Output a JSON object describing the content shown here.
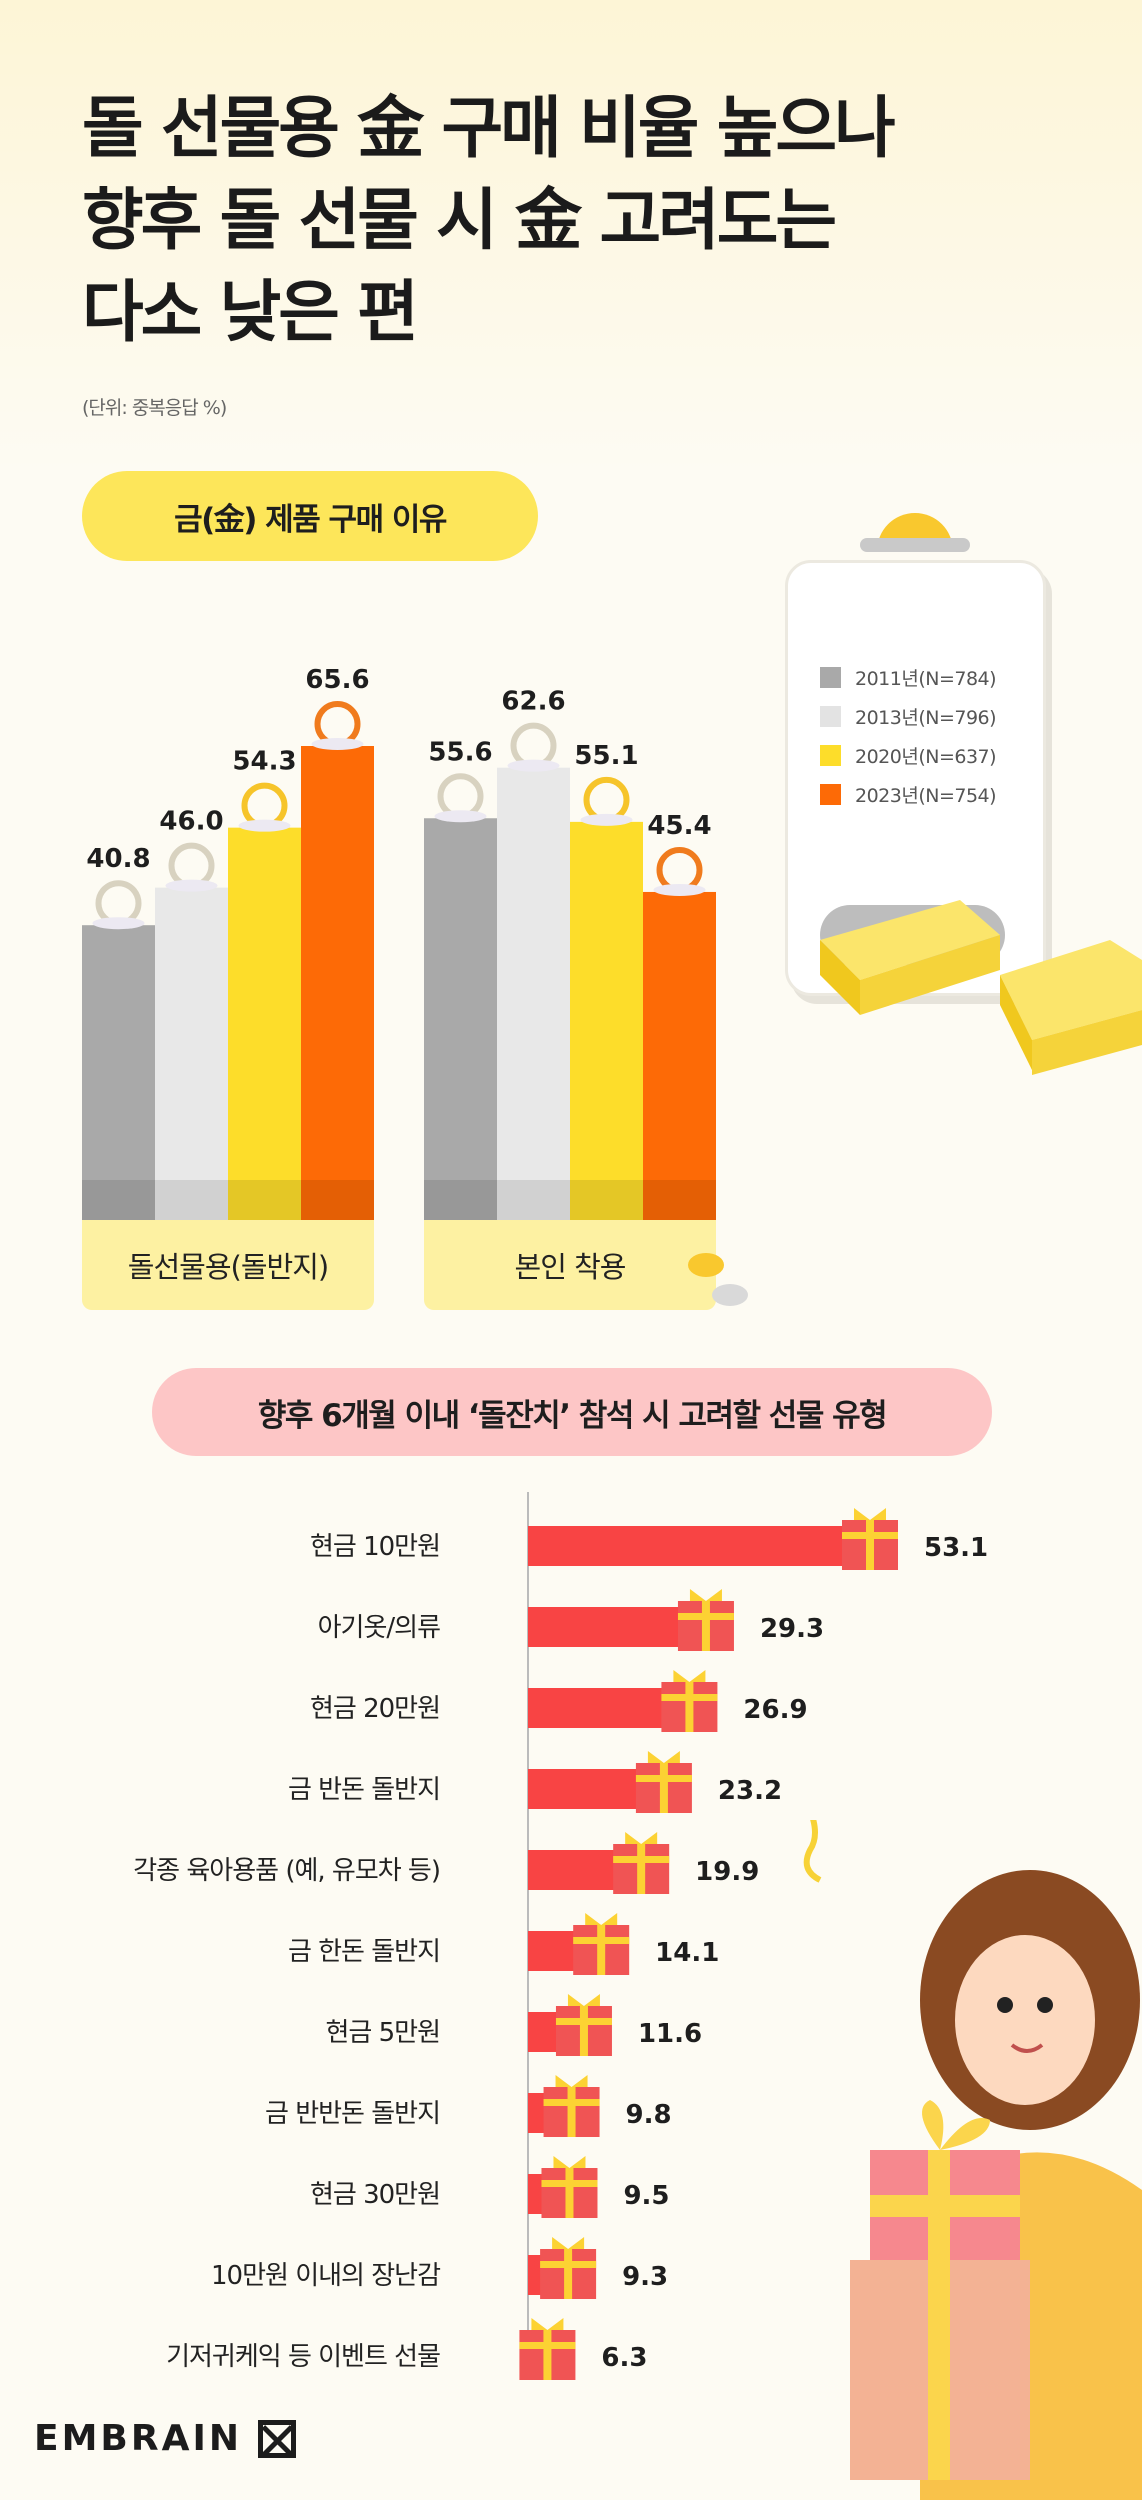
{
  "title_lines": [
    "돌 선물용 金 구매 비율 높으나",
    "향후 돌 선물 시 金 고려도는",
    "다소 낮은 편"
  ],
  "unit_note": "(단위: 중복응답 %)",
  "section1_label": "금(金) 제품 구매 이유",
  "section2_label": "향후 6개월 이내 ‘돌잔치’ 참석 시 고려할 선물 유형",
  "brand": "EMBRAIN",
  "chart_data": [
    {
      "type": "bar",
      "title": "금(金) 제품 구매 이유",
      "categories": [
        "돌선물용(돌반지)",
        "본인 착용"
      ],
      "series": [
        {
          "name": "2011년(N=784)",
          "color": "#a9a9a9",
          "values": [
            40.8,
            55.6
          ]
        },
        {
          "name": "2013년(N=796)",
          "color": "#e8e8e8",
          "values": [
            46.0,
            62.6
          ]
        },
        {
          "name": "2020년(N=637)",
          "color": "#fddd2a",
          "values": [
            54.3,
            55.1
          ]
        },
        {
          "name": "2023년(N=754)",
          "color": "#fd6a06",
          "values": [
            65.6,
            45.4
          ]
        }
      ],
      "value_labels": [
        [
          "40.8",
          "55.6"
        ],
        [
          "46.0",
          "62.6"
        ],
        [
          "54.3",
          "55.1"
        ],
        [
          "65.6",
          "45.4"
        ]
      ],
      "ylim": [
        0,
        70
      ],
      "legend_position": "right"
    },
    {
      "type": "bar",
      "orientation": "horizontal",
      "title": "향후 6개월 이내 ‘돌잔치’ 참석 시 고려할 선물 유형",
      "categories": [
        "현금 10만원",
        "아기옷/의류",
        "현금 20만원",
        "금 반돈 돌반지",
        "각종 육아용품 (예, 유모차 등)",
        "금 한돈 돌반지",
        "현금 5만원",
        "금 반반돈 돌반지",
        "현금 30만원",
        "10만원 이내의 장난감",
        "기저귀케익 등 이벤트 선물"
      ],
      "values": [
        53.1,
        29.3,
        26.9,
        23.2,
        19.9,
        14.1,
        11.6,
        9.8,
        9.5,
        9.3,
        6.3
      ],
      "value_labels": [
        "53.1",
        "29.3",
        "26.9",
        "23.2",
        "19.9",
        "14.1",
        "11.6",
        "9.8",
        "9.5",
        "9.3",
        "6.3"
      ],
      "bar_color": "#f84444"
    }
  ]
}
